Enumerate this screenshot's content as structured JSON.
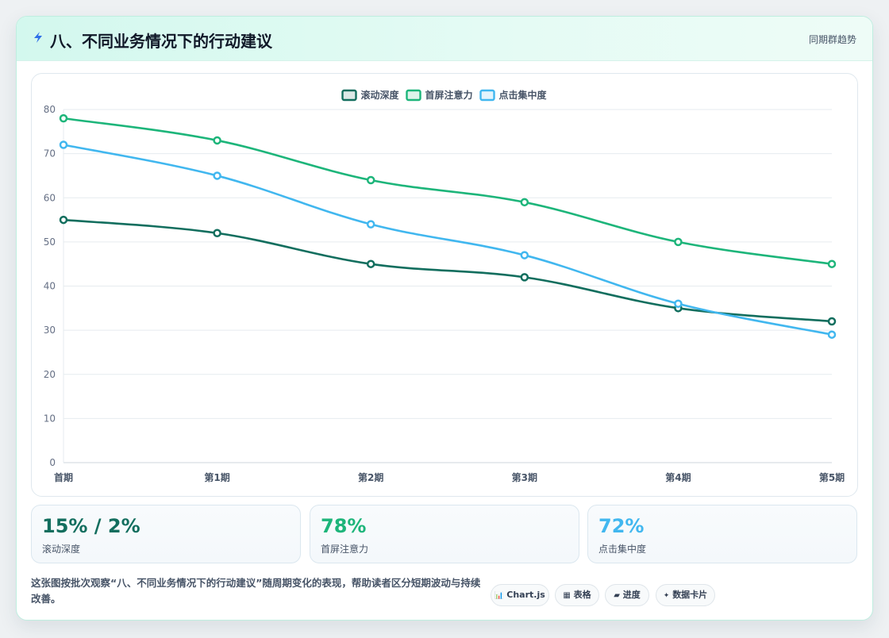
{
  "header": {
    "title": "八、不同业务情况下的行动建议",
    "right_link": "同期群趋势"
  },
  "colors": {
    "scroll": "#126e5e",
    "attention": "#1db57a",
    "click": "#41b7ef"
  },
  "chart_data": {
    "type": "line",
    "title": "",
    "xlabel": "",
    "ylabel": "",
    "categories": [
      "首期",
      "第1期",
      "第2期",
      "第3期",
      "第4期",
      "第5期"
    ],
    "ylim": [
      0,
      80
    ],
    "yticks": [
      0,
      10,
      20,
      30,
      40,
      50,
      60,
      70,
      80
    ],
    "grid": true,
    "legend_position": "top-center",
    "series": [
      {
        "name": "滚动深度",
        "color": "#126e5e",
        "values": [
          55,
          52,
          45,
          42,
          35,
          32
        ]
      },
      {
        "name": "首屏注意力",
        "color": "#1db57a",
        "values": [
          78,
          73,
          64,
          59,
          50,
          45
        ]
      },
      {
        "name": "点击集中度",
        "color": "#41b7ef",
        "values": [
          72,
          65,
          54,
          47,
          36,
          29
        ]
      }
    ]
  },
  "kpis": [
    {
      "value": "15% / 2%",
      "label": "滚动深度",
      "color": "#126e5e"
    },
    {
      "value": "78%",
      "label": "首屏注意力",
      "color": "#1db57a"
    },
    {
      "value": "72%",
      "label": "点击集中度",
      "color": "#41b7ef"
    }
  ],
  "description": "这张图按批次观察“八、不同业务情况下的行动建议”随周期变化的表现，帮助读者区分短期波动与持续改善。",
  "tags": [
    {
      "icon": "📊",
      "icon_name": "chart-icon",
      "label": "Chart.js"
    },
    {
      "icon": "▦",
      "icon_name": "table-icon",
      "label": "表格"
    },
    {
      "icon": "▰",
      "icon_name": "progress-icon",
      "label": "进度"
    },
    {
      "icon": "✦",
      "icon_name": "sparkle-icon",
      "label": "数据卡片"
    }
  ]
}
